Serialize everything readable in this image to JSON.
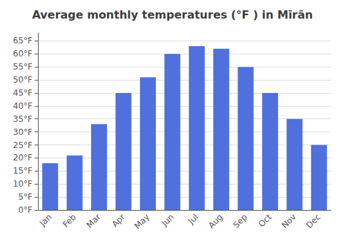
{
  "chart_data": {
    "type": "bar",
    "title": "Average monthly temperatures (°F ) in Mīrān",
    "categories": [
      "Jan",
      "Feb",
      "Mar",
      "Apr",
      "May",
      "Jun",
      "Jul",
      "Aug",
      "Sep",
      "Oct",
      "Nov",
      "Dec"
    ],
    "values": [
      18,
      21,
      33,
      45,
      51,
      60,
      63,
      62,
      55,
      45,
      35,
      25
    ],
    "ylim": [
      0,
      68
    ],
    "yticks": [
      {
        "value": 0,
        "label": "0°F"
      },
      {
        "value": 5,
        "label": "5°F"
      },
      {
        "value": 10,
        "label": "10°F"
      },
      {
        "value": 15,
        "label": "15°F"
      },
      {
        "value": 20,
        "label": "20°F"
      },
      {
        "value": 25,
        "label": "25°F"
      },
      {
        "value": 30,
        "label": "30°F"
      },
      {
        "value": 35,
        "label": "35°F"
      },
      {
        "value": 40,
        "label": "40°F"
      },
      {
        "value": 45,
        "label": "45°F"
      },
      {
        "value": 50,
        "label": "50°F"
      },
      {
        "value": 55,
        "label": "55°F"
      },
      {
        "value": 60,
        "label": "60°F"
      },
      {
        "value": 65,
        "label": "65°F"
      }
    ],
    "grid": true
  }
}
